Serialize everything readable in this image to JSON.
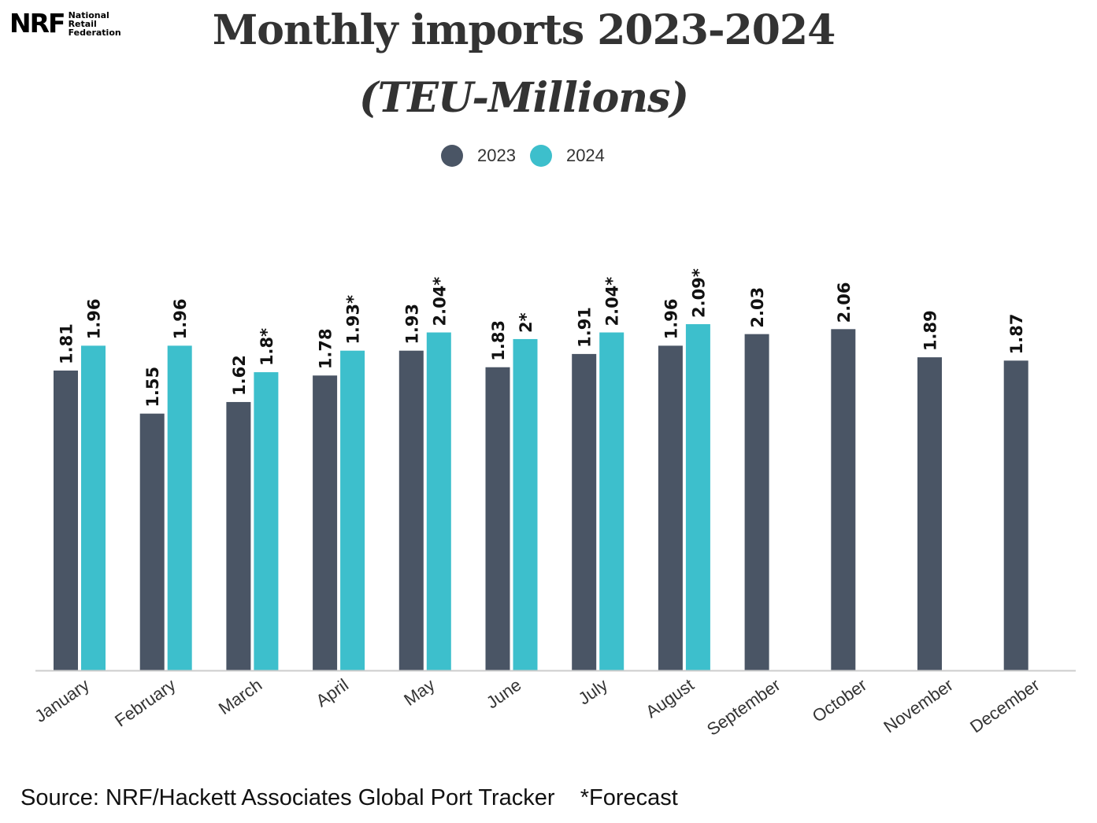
{
  "logo": {
    "mark": "NRF",
    "line1": "National",
    "line2": "Retail",
    "line3": "Federation"
  },
  "title": "Monthly imports 2023-2024",
  "subtitle": "(TEU-Millions)",
  "colors": {
    "series_2023": "#4a5565",
    "series_2024": "#3dbfcc",
    "axis": "#cccccc",
    "label": "#111111",
    "tick": "#333333"
  },
  "legend": {
    "items": [
      {
        "label": "2023",
        "color": "#4a5565"
      },
      {
        "label": "2024",
        "color": "#3dbfcc"
      }
    ]
  },
  "chart_data": {
    "type": "bar",
    "categories": [
      "January",
      "February",
      "March",
      "April",
      "May",
      "June",
      "July",
      "August",
      "September",
      "October",
      "November",
      "December"
    ],
    "series": [
      {
        "name": "2023",
        "values": [
          1.81,
          1.55,
          1.62,
          1.78,
          1.93,
          1.83,
          1.91,
          1.96,
          2.03,
          2.06,
          1.89,
          1.87
        ],
        "labels": [
          "1.81",
          "1.55",
          "1.62",
          "1.78",
          "1.93",
          "1.83",
          "1.91",
          "1.96",
          "2.03",
          "2.06",
          "1.89",
          "1.87"
        ]
      },
      {
        "name": "2024",
        "values": [
          1.96,
          1.96,
          1.8,
          1.93,
          2.04,
          2.0,
          2.04,
          2.09,
          null,
          null,
          null,
          null
        ],
        "labels": [
          "1.96",
          "1.96",
          "1.8*",
          "1.93*",
          "2.04*",
          "2*",
          "2.04*",
          "2.09*",
          null,
          null,
          null,
          null
        ]
      }
    ],
    "ylim": [
      0,
      2.09
    ],
    "grid": false,
    "legend_position": "top-center"
  },
  "footer": {
    "source": "Source: NRF/Hackett Associates Global Port Tracker",
    "note": "*Forecast"
  }
}
